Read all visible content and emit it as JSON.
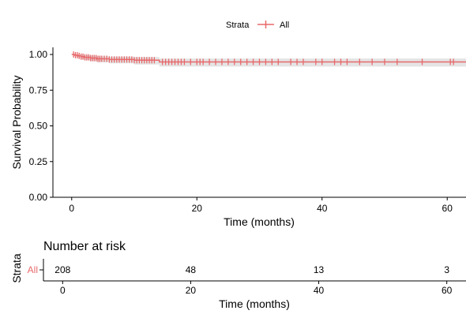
{
  "chart_data": [
    {
      "type": "line",
      "subtype": "kaplan-meier",
      "legend": {
        "title": "Strata",
        "position": "top",
        "entries": [
          {
            "name": "All",
            "color": "#E8696B"
          }
        ]
      },
      "xlabel": "Time (months)",
      "ylabel": "Survival Probability",
      "xlim": [
        -3,
        63
      ],
      "ylim": [
        0,
        1.05
      ],
      "x_ticks": [
        0,
        20,
        40,
        60
      ],
      "y_ticks": [
        0.0,
        0.25,
        0.5,
        0.75,
        1.0
      ],
      "x_tick_labels": [
        "0",
        "20",
        "40",
        "60"
      ],
      "y_tick_labels": [
        "0.00",
        "0.25",
        "0.50",
        "0.75",
        "1.00"
      ],
      "series": [
        {
          "name": "All",
          "color": "#E8696B",
          "ci_color": "#D9D9D9",
          "x": [
            0,
            0.5,
            1.0,
            1.5,
            2.0,
            3.0,
            4.0,
            6.0,
            10.0,
            14.0,
            63.0
          ],
          "y": [
            1.0,
            0.995,
            0.99,
            0.985,
            0.98,
            0.975,
            0.97,
            0.965,
            0.96,
            0.948,
            0.948
          ],
          "ci_lower": [
            1.0,
            0.985,
            0.975,
            0.968,
            0.96,
            0.952,
            0.945,
            0.938,
            0.93,
            0.915,
            0.915
          ],
          "ci_upper": [
            1.0,
            1.0,
            1.0,
            1.0,
            0.995,
            0.992,
            0.988,
            0.985,
            0.982,
            0.972,
            0.972
          ],
          "censor_times": [
            0.3,
            0.6,
            0.9,
            1.2,
            1.5,
            1.8,
            2.1,
            2.4,
            2.7,
            3.0,
            3.3,
            3.6,
            3.9,
            4.2,
            4.5,
            4.8,
            5.2,
            5.6,
            6.0,
            6.4,
            6.8,
            7.2,
            7.6,
            8.0,
            8.4,
            8.8,
            9.2,
            9.6,
            10.0,
            10.4,
            10.8,
            11.2,
            11.6,
            12.0,
            12.4,
            12.8,
            13.2,
            14.5,
            15.0,
            15.5,
            16.0,
            16.5,
            17.0,
            17.5,
            18.0,
            19.0,
            20.0,
            20.5,
            21.0,
            22.0,
            23.0,
            24.0,
            25.0,
            26.0,
            27.0,
            28.0,
            29.0,
            30.0,
            31.0,
            32.0,
            33.0,
            35.0,
            36.0,
            37.0,
            39.0,
            40.0,
            42.0,
            43.0,
            44.0,
            46.0,
            48.0,
            50.0,
            52.0,
            56.0,
            60.5,
            61.0
          ]
        }
      ]
    },
    {
      "type": "table",
      "title": "Number at risk",
      "ylabel": "Strata",
      "xlabel": "Time (months)",
      "xlim": [
        -3,
        63
      ],
      "x_ticks": [
        0,
        20,
        40,
        60
      ],
      "x_tick_labels": [
        "0",
        "20",
        "40",
        "60"
      ],
      "rows": [
        {
          "strata": "All",
          "color": "#E8696B",
          "times": [
            0,
            20,
            40,
            60
          ],
          "values": [
            "208",
            "48",
            "13",
            "3"
          ]
        }
      ]
    }
  ]
}
